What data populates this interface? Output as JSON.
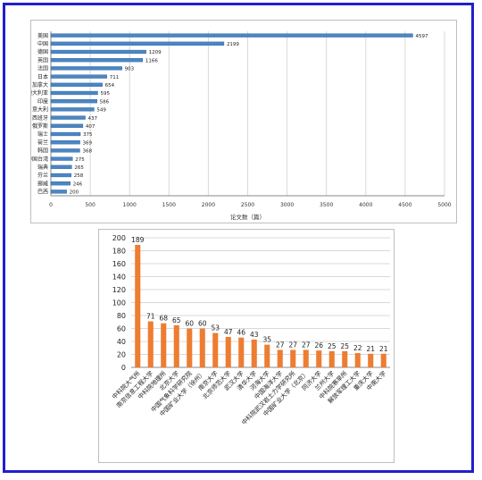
{
  "chart_data": [
    {
      "type": "bar",
      "orientation": "horizontal",
      "categories": [
        "美国",
        "中国",
        "德国",
        "英国",
        "法国",
        "日本",
        "加拿大",
        "澳大利亚",
        "印度",
        "意大利",
        "西班牙",
        "俄罗斯",
        "瑞士",
        "荷兰",
        "韩国",
        "中国台湾",
        "瑞典",
        "芬兰",
        "挪威",
        "巴西"
      ],
      "values": [
        4597,
        2199,
        1209,
        1166,
        903,
        711,
        654,
        595,
        586,
        549,
        437,
        407,
        375,
        369,
        368,
        275,
        265,
        258,
        246,
        200
      ],
      "xlabel": "论文数（篇）",
      "ylabel": "",
      "xlim": [
        0,
        5000
      ],
      "xticks": [
        0,
        500,
        1000,
        1500,
        2000,
        2500,
        3000,
        3500,
        4000,
        4500,
        5000
      ],
      "grid": true,
      "colors": {
        "bar": "#4a86c5",
        "grid": "#d9d9d9"
      }
    },
    {
      "type": "bar",
      "categories": [
        "中科院大气所",
        "南京信息工程大学",
        "中科院地理所",
        "北京大学",
        "中国气象科学研究院",
        "中国矿业大学（徐州）",
        "南京大学",
        "北京师范大学",
        "武汉大学",
        "清华大学",
        "河海大学",
        "中国海洋大学",
        "中科院武汉岩土力学研究所",
        "中国矿业大学（北京）",
        "同济大学",
        "兰州大学",
        "中科院寒旱所",
        "解放军理工大学",
        "重庆大学",
        "中南大学"
      ],
      "values": [
        189,
        71,
        68,
        65,
        60,
        60,
        53,
        47,
        46,
        43,
        35,
        27,
        27,
        27,
        26,
        25,
        25,
        22,
        21,
        21
      ],
      "xlabel": "",
      "ylabel": "",
      "ylim": [
        0,
        200
      ],
      "yticks": [
        0,
        20,
        40,
        60,
        80,
        100,
        120,
        140,
        160,
        180,
        200
      ],
      "grid": true,
      "colors": {
        "bar": "#ed7d31",
        "grid": "#d9d9d9"
      }
    }
  ]
}
